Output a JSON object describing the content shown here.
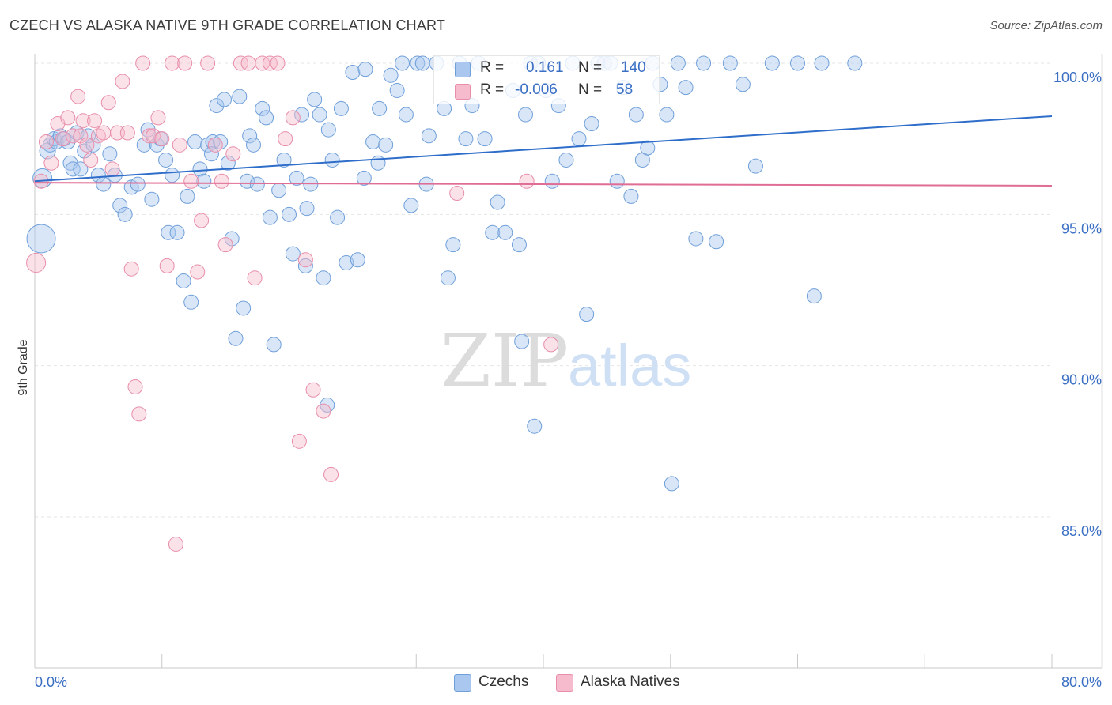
{
  "title": "CZECH VS ALASKA NATIVE 9TH GRADE CORRELATION CHART",
  "source": "Source: ZipAtlas.com",
  "watermark": {
    "zip": "ZIP",
    "atlas": "atlas"
  },
  "legend_box": {
    "czechs": {
      "r_label": "R =",
      "r_value": "0.161",
      "n_label": "N =",
      "n_value": "140"
    },
    "alaska": {
      "r_label": "R =",
      "r_value": "-0.006",
      "n_label": "N =",
      "n_value": "58"
    }
  },
  "bottom_legend": {
    "czechs": "Czechs",
    "alaska": "Alaska Natives"
  },
  "colors": {
    "czechs_fill": "#a9c7ef",
    "czechs_stroke": "#6f9fd9",
    "czechs_line": "#2e6dc9",
    "alaska_fill": "#f6bccd",
    "alaska_stroke": "#e88eaa",
    "alaska_line": "#e06d95",
    "tick_label": "#3a6fc4",
    "grid": "#e5e5e5"
  },
  "chart_data": {
    "type": "scatter",
    "title": "CZECH VS ALASKA NATIVE 9TH GRADE CORRELATION CHART",
    "ylabel": "9th Grade",
    "xlabel": "",
    "xlim": [
      0,
      80
    ],
    "ylim": [
      80.5,
      100.8
    ],
    "x_tick_labels": [
      "0.0%",
      "80.0%"
    ],
    "y_ticks": [
      85,
      90,
      95,
      100
    ],
    "y_tick_labels": [
      "85.0%",
      "90.0%",
      "95.0%",
      "100.0%"
    ],
    "grid": true,
    "series": [
      {
        "name": "Czechs",
        "trend": {
          "x": [
            0,
            80
          ],
          "y": [
            96.1,
            98.25
          ]
        },
        "points": [
          [
            0.5,
            94.2
          ],
          [
            0.6,
            96.2
          ],
          [
            1.0,
            97.1
          ],
          [
            1.2,
            97.3
          ],
          [
            1.5,
            97.5
          ],
          [
            1.7,
            97.4
          ],
          [
            2.0,
            97.6
          ],
          [
            2.3,
            97.5
          ],
          [
            2.6,
            97.4
          ],
          [
            2.8,
            96.7
          ],
          [
            3.0,
            96.5
          ],
          [
            3.3,
            97.7
          ],
          [
            3.6,
            96.5
          ],
          [
            3.9,
            97.1
          ],
          [
            4.2,
            97.6
          ],
          [
            4.6,
            97.3
          ],
          [
            5.0,
            96.3
          ],
          [
            5.4,
            96.0
          ],
          [
            5.9,
            97.0
          ],
          [
            6.3,
            96.3
          ],
          [
            6.7,
            95.3
          ],
          [
            7.1,
            95.0
          ],
          [
            7.6,
            95.9
          ],
          [
            8.1,
            96.0
          ],
          [
            8.6,
            97.3
          ],
          [
            8.9,
            97.8
          ],
          [
            9.2,
            95.5
          ],
          [
            9.6,
            97.3
          ],
          [
            9.9,
            97.5
          ],
          [
            10.3,
            96.8
          ],
          [
            10.5,
            94.4
          ],
          [
            10.8,
            96.3
          ],
          [
            11.2,
            94.4
          ],
          [
            11.7,
            92.8
          ],
          [
            12.0,
            95.6
          ],
          [
            12.3,
            92.1
          ],
          [
            12.6,
            97.4
          ],
          [
            13.0,
            96.5
          ],
          [
            13.3,
            96.1
          ],
          [
            13.6,
            97.3
          ],
          [
            14.0,
            97.4
          ],
          [
            14.3,
            98.6
          ],
          [
            14.6,
            97.4
          ],
          [
            14.9,
            98.8
          ],
          [
            15.2,
            96.7
          ],
          [
            15.5,
            94.2
          ],
          [
            15.8,
            90.9
          ],
          [
            16.1,
            98.9
          ],
          [
            16.4,
            91.9
          ],
          [
            16.7,
            96.1
          ],
          [
            16.9,
            97.6
          ],
          [
            17.2,
            97.3
          ],
          [
            17.5,
            96.0
          ],
          [
            17.9,
            98.5
          ],
          [
            18.2,
            98.2
          ],
          [
            18.5,
            94.9
          ],
          [
            18.8,
            90.7
          ],
          [
            19.2,
            95.8
          ],
          [
            19.6,
            96.8
          ],
          [
            20.0,
            95.0
          ],
          [
            20.3,
            93.7
          ],
          [
            20.6,
            96.2
          ],
          [
            21.0,
            98.3
          ],
          [
            21.4,
            95.2
          ],
          [
            21.7,
            96.0
          ],
          [
            22.0,
            98.8
          ],
          [
            22.4,
            98.3
          ],
          [
            22.7,
            92.9
          ],
          [
            23.1,
            97.8
          ],
          [
            23.4,
            96.8
          ],
          [
            23.8,
            94.9
          ],
          [
            24.1,
            98.5
          ],
          [
            24.5,
            93.4
          ],
          [
            25.0,
            99.7
          ],
          [
            25.4,
            93.5
          ],
          [
            26.0,
            99.8
          ],
          [
            26.6,
            97.4
          ],
          [
            27.1,
            98.5
          ],
          [
            27.6,
            97.3
          ],
          [
            28.0,
            99.6
          ],
          [
            28.5,
            99.1
          ],
          [
            28.9,
            100.0
          ],
          [
            29.2,
            98.3
          ],
          [
            29.6,
            95.3
          ],
          [
            30.1,
            100.0
          ],
          [
            30.5,
            100.0
          ],
          [
            31.0,
            97.6
          ],
          [
            31.6,
            100.0
          ],
          [
            32.2,
            98.5
          ],
          [
            32.5,
            92.9
          ],
          [
            32.9,
            94.0
          ],
          [
            33.4,
            100.0
          ],
          [
            33.9,
            97.5
          ],
          [
            34.4,
            98.6
          ],
          [
            34.9,
            100.0
          ],
          [
            35.4,
            97.5
          ],
          [
            36.0,
            94.4
          ],
          [
            36.4,
            95.4
          ],
          [
            37.0,
            94.4
          ],
          [
            37.6,
            99.1
          ],
          [
            38.1,
            94.0
          ],
          [
            38.6,
            98.3
          ],
          [
            39.0,
            100.0
          ],
          [
            39.6,
            100.0
          ],
          [
            40.2,
            99.1
          ],
          [
            40.7,
            96.1
          ],
          [
            41.2,
            98.6
          ],
          [
            41.8,
            96.8
          ],
          [
            42.3,
            100.0
          ],
          [
            42.8,
            97.5
          ],
          [
            43.4,
            91.7
          ],
          [
            43.8,
            98.0
          ],
          [
            44.3,
            100.0
          ],
          [
            44.8,
            100.0
          ],
          [
            45.3,
            100.0
          ],
          [
            45.8,
            96.1
          ],
          [
            46.3,
            99.2
          ],
          [
            46.9,
            95.6
          ],
          [
            47.3,
            98.3
          ],
          [
            47.8,
            96.8
          ],
          [
            48.2,
            97.2
          ],
          [
            48.6,
            100.0
          ],
          [
            49.2,
            99.3
          ],
          [
            49.7,
            98.3
          ],
          [
            50.1,
            86.1
          ],
          [
            50.6,
            100.0
          ],
          [
            51.2,
            99.2
          ],
          [
            52.0,
            94.2
          ],
          [
            52.6,
            100.0
          ],
          [
            53.6,
            94.1
          ],
          [
            54.7,
            100.0
          ],
          [
            55.7,
            99.3
          ],
          [
            56.7,
            96.6
          ],
          [
            58.0,
            100.0
          ],
          [
            60.0,
            100.0
          ],
          [
            61.3,
            92.3
          ],
          [
            61.9,
            100.0
          ],
          [
            64.5,
            100.0
          ],
          [
            39.3,
            88.0
          ],
          [
            38.3,
            90.8
          ],
          [
            30.8,
            96.0
          ],
          [
            27.0,
            96.7
          ],
          [
            25.9,
            96.2
          ],
          [
            23.0,
            88.7
          ],
          [
            21.3,
            93.3
          ],
          [
            13.9,
            97.0
          ]
        ]
      },
      {
        "name": "Alaska Natives",
        "trend": {
          "x": [
            0,
            80
          ],
          "y": [
            96.05,
            95.95
          ]
        },
        "points": [
          [
            0.1,
            93.4
          ],
          [
            0.5,
            96.1
          ],
          [
            0.9,
            97.4
          ],
          [
            1.3,
            96.7
          ],
          [
            1.8,
            98.0
          ],
          [
            2.2,
            97.5
          ],
          [
            2.6,
            98.2
          ],
          [
            3.0,
            97.6
          ],
          [
            3.4,
            98.9
          ],
          [
            3.6,
            97.6
          ],
          [
            3.8,
            98.1
          ],
          [
            4.1,
            97.3
          ],
          [
            4.4,
            96.8
          ],
          [
            4.7,
            98.1
          ],
          [
            5.0,
            97.6
          ],
          [
            5.4,
            97.7
          ],
          [
            5.8,
            98.7
          ],
          [
            6.1,
            96.5
          ],
          [
            6.5,
            97.7
          ],
          [
            6.9,
            99.4
          ],
          [
            7.3,
            97.7
          ],
          [
            7.6,
            93.2
          ],
          [
            7.9,
            89.3
          ],
          [
            8.2,
            88.4
          ],
          [
            8.5,
            100.0
          ],
          [
            9.0,
            97.6
          ],
          [
            9.3,
            97.6
          ],
          [
            9.7,
            98.2
          ],
          [
            10.0,
            97.5
          ],
          [
            10.4,
            93.3
          ],
          [
            10.8,
            100.0
          ],
          [
            11.1,
            84.1
          ],
          [
            11.4,
            97.3
          ],
          [
            11.8,
            100.0
          ],
          [
            12.3,
            96.1
          ],
          [
            12.8,
            93.1
          ],
          [
            13.1,
            94.8
          ],
          [
            13.6,
            100.0
          ],
          [
            14.2,
            97.3
          ],
          [
            14.7,
            96.1
          ],
          [
            15.0,
            94.0
          ],
          [
            15.6,
            97.0
          ],
          [
            16.2,
            100.0
          ],
          [
            16.8,
            100.0
          ],
          [
            17.3,
            92.9
          ],
          [
            17.9,
            100.0
          ],
          [
            18.5,
            100.0
          ],
          [
            19.1,
            100.0
          ],
          [
            19.7,
            97.5
          ],
          [
            20.3,
            98.2
          ],
          [
            20.8,
            87.5
          ],
          [
            21.3,
            93.5
          ],
          [
            21.9,
            89.2
          ],
          [
            22.7,
            88.5
          ],
          [
            23.3,
            86.4
          ],
          [
            33.2,
            95.7
          ],
          [
            38.7,
            96.1
          ],
          [
            40.6,
            90.7
          ]
        ]
      }
    ]
  }
}
